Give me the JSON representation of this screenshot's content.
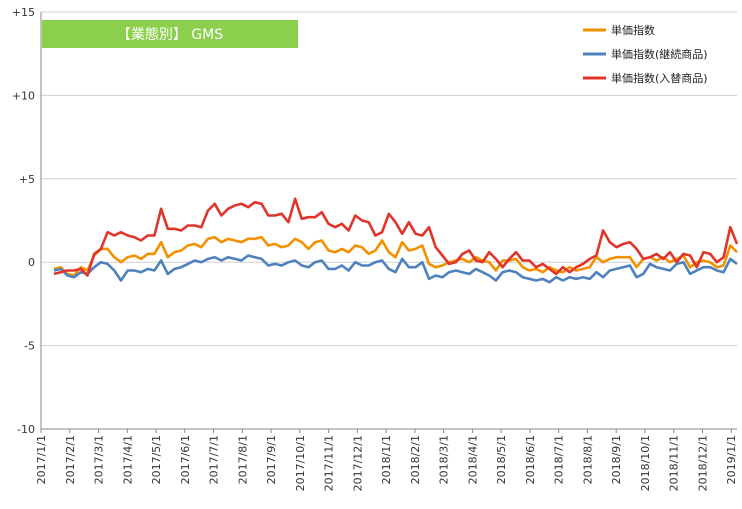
{
  "chart_data": {
    "type": "line",
    "title": "【業態別】 GMS",
    "xlabel": "",
    "ylabel": "",
    "ylim": [
      -10,
      15
    ],
    "yticks": [
      15,
      10,
      5,
      0,
      -5,
      -10
    ],
    "ytick_labels": [
      "+15",
      "+10",
      "+5",
      "0",
      "-5",
      "-10"
    ],
    "x_labels": [
      "2017/1/1",
      "2017/2/1",
      "2017/3/1",
      "2017/4/1",
      "2017/5/1",
      "2017/6/1",
      "2017/7/1",
      "2017/8/1",
      "2017/9/1",
      "2017/10/1",
      "2017/11/1",
      "2017/12/1",
      "2018/1/1",
      "2018/2/1",
      "2018/3/1",
      "2018/4/1",
      "2018/5/1",
      "2018/6/1",
      "2018/7/1",
      "2018/8/1",
      "2018/9/1",
      "2018/10/1",
      "2018/11/1",
      "2018/12/1",
      "2019/1/1"
    ],
    "grid": "horizontal",
    "legend_position": "top-right",
    "series": [
      {
        "name": "単価指数",
        "color": "#F39200",
        "values": [
          -0.4,
          -0.3,
          -0.7,
          -0.8,
          -0.3,
          -0.5,
          0.4,
          0.8,
          0.8,
          0.3,
          0.0,
          0.3,
          0.4,
          0.2,
          0.5,
          0.5,
          1.2,
          0.3,
          0.6,
          0.7,
          1.0,
          1.1,
          0.9,
          1.4,
          1.5,
          1.2,
          1.4,
          1.3,
          1.2,
          1.4,
          1.4,
          1.5,
          1.0,
          1.1,
          0.9,
          1.0,
          1.4,
          1.2,
          0.8,
          1.2,
          1.3,
          0.7,
          0.6,
          0.8,
          0.6,
          1.0,
          0.9,
          0.5,
          0.7,
          1.3,
          0.6,
          0.3,
          1.2,
          0.7,
          0.8,
          1.0,
          -0.1,
          -0.3,
          -0.2,
          0.0,
          0.1,
          0.2,
          0.0,
          0.3,
          0.1,
          0.0,
          -0.5,
          0.1,
          0.1,
          0.2,
          -0.3,
          -0.5,
          -0.4,
          -0.6,
          -0.3,
          -0.5,
          -0.6,
          -0.3,
          -0.5,
          -0.4,
          -0.3,
          0.3,
          0.0,
          0.2,
          0.3,
          0.3,
          0.3,
          -0.3,
          0.2,
          0.3,
          0.1,
          0.3,
          0.0,
          0.2,
          0.4,
          -0.3,
          0.0,
          0.1,
          0.0,
          -0.3,
          -0.2,
          1.0,
          0.6
        ]
      },
      {
        "name": "単価指数(継続商品)",
        "color": "#4F81BD",
        "values": [
          -0.5,
          -0.4,
          -0.8,
          -0.9,
          -0.6,
          -0.7,
          -0.3,
          0.0,
          -0.1,
          -0.5,
          -1.1,
          -0.5,
          -0.5,
          -0.6,
          -0.4,
          -0.5,
          0.1,
          -0.7,
          -0.4,
          -0.3,
          -0.1,
          0.1,
          0.0,
          0.2,
          0.3,
          0.1,
          0.3,
          0.2,
          0.1,
          0.4,
          0.3,
          0.2,
          -0.2,
          -0.1,
          -0.2,
          0.0,
          0.1,
          -0.2,
          -0.3,
          0.0,
          0.1,
          -0.4,
          -0.4,
          -0.2,
          -0.5,
          0.0,
          -0.2,
          -0.2,
          0.0,
          0.1,
          -0.4,
          -0.6,
          0.2,
          -0.3,
          -0.3,
          0.0,
          -1.0,
          -0.8,
          -0.9,
          -0.6,
          -0.5,
          -0.6,
          -0.7,
          -0.4,
          -0.6,
          -0.8,
          -1.1,
          -0.6,
          -0.5,
          -0.6,
          -0.9,
          -1.0,
          -1.1,
          -1.0,
          -1.2,
          -0.9,
          -1.1,
          -0.9,
          -1.0,
          -0.9,
          -1.0,
          -0.6,
          -0.9,
          -0.5,
          -0.4,
          -0.3,
          -0.2,
          -0.9,
          -0.7,
          -0.1,
          -0.3,
          -0.4,
          -0.5,
          -0.1,
          0.0,
          -0.7,
          -0.5,
          -0.3,
          -0.3,
          -0.5,
          -0.6,
          0.2,
          -0.1
        ]
      },
      {
        "name": "単価指数(入替商品)",
        "color": "#E0352B",
        "values": [
          -0.7,
          -0.6,
          -0.5,
          -0.5,
          -0.4,
          -0.8,
          0.5,
          0.8,
          1.8,
          1.6,
          1.8,
          1.6,
          1.5,
          1.3,
          1.6,
          1.6,
          3.2,
          2.0,
          2.0,
          1.9,
          2.2,
          2.2,
          2.1,
          3.1,
          3.5,
          2.8,
          3.2,
          3.4,
          3.5,
          3.3,
          3.6,
          3.5,
          2.8,
          2.8,
          2.9,
          2.4,
          3.8,
          2.6,
          2.7,
          2.7,
          3.0,
          2.3,
          2.1,
          2.3,
          1.9,
          2.8,
          2.5,
          2.4,
          1.6,
          1.8,
          2.9,
          2.4,
          1.7,
          2.4,
          1.7,
          1.6,
          2.1,
          0.9,
          0.4,
          -0.1,
          0.0,
          0.5,
          0.7,
          0.1,
          0.0,
          0.6,
          0.2,
          -0.3,
          0.2,
          0.6,
          0.1,
          0.1,
          -0.3,
          -0.1,
          -0.4,
          -0.7,
          -0.3,
          -0.6,
          -0.3,
          -0.1,
          0.2,
          0.4,
          1.9,
          1.2,
          0.9,
          1.1,
          1.2,
          0.8,
          0.2,
          0.3,
          0.5,
          0.2,
          0.6,
          0.0,
          0.5,
          0.4,
          -0.3,
          0.6,
          0.5,
          0.0,
          0.3,
          2.1,
          1.1
        ]
      }
    ]
  }
}
